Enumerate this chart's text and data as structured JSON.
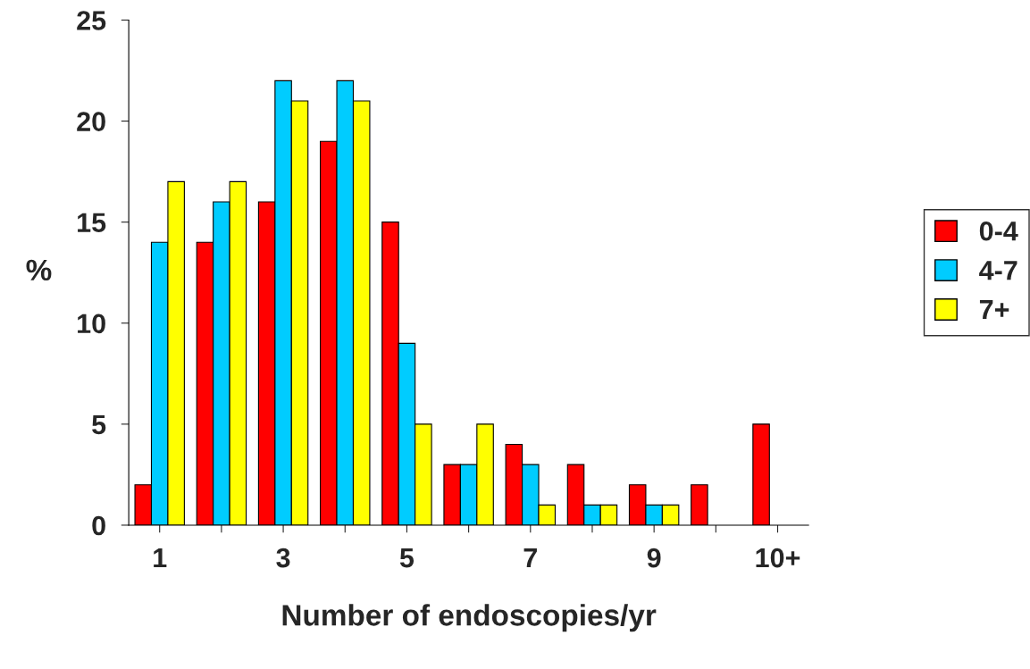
{
  "chart_data": {
    "type": "bar",
    "xlabel": "Number of endoscopies/yr",
    "ylabel": "%",
    "categories": [
      "1",
      null,
      "3",
      null,
      "5",
      null,
      "7",
      null,
      "9",
      null,
      "10+"
    ],
    "series": [
      {
        "name": "0-4",
        "color": "#ff0000",
        "values": [
          2,
          14,
          16,
          19,
          15,
          3,
          4,
          3,
          2,
          2,
          5
        ]
      },
      {
        "name": "4-7",
        "color": "#00ccff",
        "values": [
          14,
          16,
          22,
          22,
          9,
          3,
          3,
          1,
          1,
          null,
          null
        ]
      },
      {
        "name": "7+",
        "color": "#ffff00",
        "values": [
          17,
          17,
          21,
          21,
          5,
          5,
          1,
          1,
          1,
          null,
          null
        ]
      }
    ],
    "ylim": [
      0,
      25
    ],
    "yticks": [
      0,
      5,
      10,
      15,
      20,
      25
    ],
    "grid": false,
    "legend": "right"
  }
}
